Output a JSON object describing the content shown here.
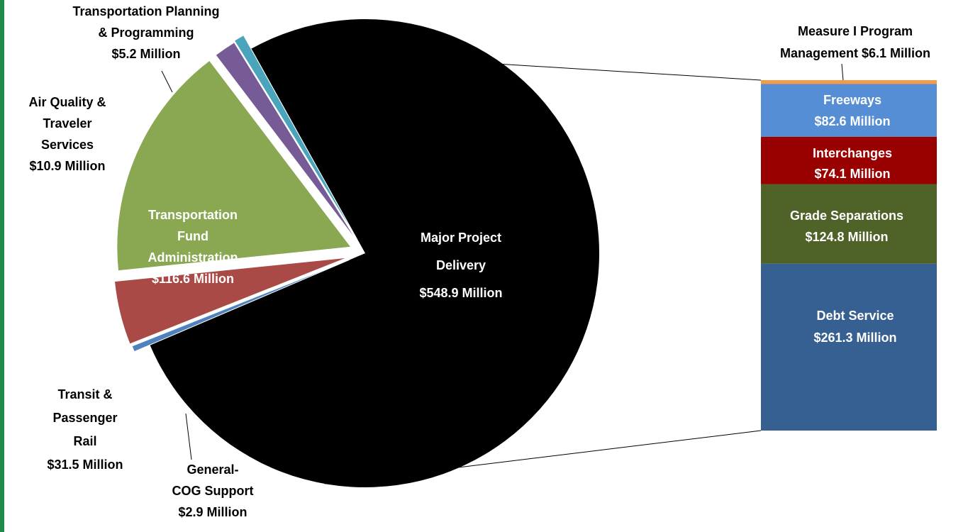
{
  "colors": {
    "accent": "#1f8a4c"
  },
  "chart_data": [
    {
      "type": "pie",
      "title": "",
      "slices": [
        {
          "id": "major",
          "label": [
            "Major Project",
            "Delivery",
            "$548.9 Million"
          ],
          "value": 548.9,
          "color": "#000000",
          "label_color": "#ffffff"
        },
        {
          "id": "cog",
          "label": [
            "General-",
            "COG Support",
            "$2.9 Million"
          ],
          "value": 2.9,
          "color": "#4f81bd",
          "label_color": "#000000"
        },
        {
          "id": "transit",
          "label": [
            "Transit &",
            "Passenger",
            "Rail",
            "$31.5 Million"
          ],
          "value": 31.5,
          "color": "#a94a46",
          "label_color": "#000000"
        },
        {
          "id": "fund",
          "label": [
            "Transportation",
            "Fund",
            "Administration",
            "$116.6 Million"
          ],
          "value": 116.6,
          "color": "#8aa752",
          "label_color": "#ffffff"
        },
        {
          "id": "air",
          "label": [
            "Air Quality &",
            "Traveler",
            "Services",
            "$10.9 Million"
          ],
          "value": 10.9,
          "color": "#765b96",
          "label_color": "#000000"
        },
        {
          "id": "planning",
          "label": [
            "Transportation  Planning",
            "& Programming",
            "$5.2 Million"
          ],
          "value": 5.2,
          "color": "#4aa4bb",
          "label_color": "#000000"
        }
      ]
    },
    {
      "type": "bar",
      "stacked": true,
      "title": "",
      "segments": [
        {
          "id": "mgmt",
          "label": [
            "Measure I Program",
            "Management $6.1 Million"
          ],
          "value": 6.1,
          "color": "#f29b4b",
          "label_color": "#000000"
        },
        {
          "id": "freeways",
          "label": [
            "Freeways",
            "$82.6 Million"
          ],
          "value": 82.6,
          "color": "#558ed5",
          "label_color": "#ffffff"
        },
        {
          "id": "interchanges",
          "label": [
            "Interchanges",
            "$74.1 Million"
          ],
          "value": 74.1,
          "color": "#990000",
          "label_color": "#ffffff"
        },
        {
          "id": "grade",
          "label": [
            "Grade Separations",
            "$124.8 Million"
          ],
          "value": 124.8,
          "color": "#4f6228",
          "label_color": "#ffffff"
        },
        {
          "id": "debt",
          "label": [
            "Debt Service",
            "$261.3 Million"
          ],
          "value": 261.3,
          "color": "#376092",
          "label_color": "#ffffff"
        }
      ]
    }
  ]
}
